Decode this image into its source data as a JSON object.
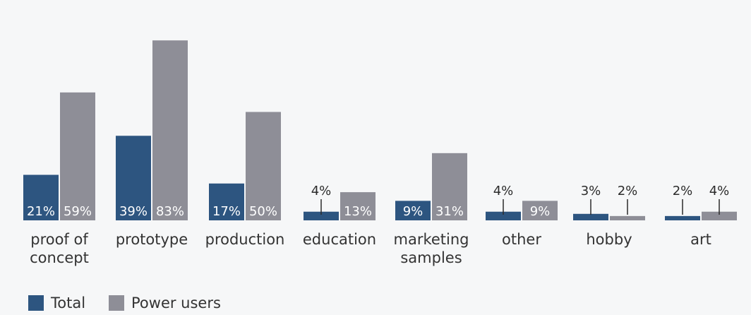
{
  "chart_data": {
    "type": "bar",
    "categories": [
      [
        "proof of",
        "concept"
      ],
      [
        "prototype"
      ],
      [
        "production"
      ],
      [
        "education"
      ],
      [
        "marketing",
        "samples"
      ],
      [
        "other"
      ],
      [
        "hobby"
      ],
      [
        "art"
      ]
    ],
    "series": [
      {
        "name": "Total",
        "color": "#2d5580",
        "values": [
          21,
          39,
          17,
          4,
          9,
          4,
          3,
          2
        ],
        "labels": [
          "21%",
          "39%",
          "17%",
          "4%",
          "9%",
          "4%",
          "3%",
          "2%"
        ]
      },
      {
        "name": "Power users",
        "color": "#8e8e97",
        "values": [
          59,
          83,
          50,
          13,
          31,
          9,
          2,
          4
        ],
        "labels": [
          "59%",
          "83%",
          "50%",
          "13%",
          "31%",
          "9%",
          "2%",
          "4%"
        ]
      }
    ],
    "ylim": [
      0,
      100
    ],
    "grid": false,
    "legend_position": "bottom-left"
  }
}
